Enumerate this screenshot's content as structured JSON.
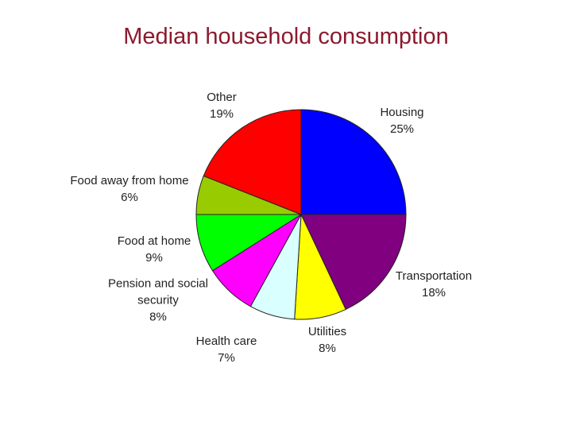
{
  "chart_data": {
    "type": "pie",
    "title": "Median household consumption",
    "categories": [
      "Housing",
      "Transportation",
      "Utilities",
      "Health care",
      "Pension and social security",
      "Food at home",
      "Food away from home",
      "Other"
    ],
    "values": [
      25,
      18,
      8,
      7,
      8,
      9,
      6,
      19
    ],
    "value_labels": [
      "25%",
      "18%",
      "8%",
      "7%",
      "8%",
      "9%",
      "6%",
      "19%"
    ],
    "colors": [
      "#0000ff",
      "#800080",
      "#ffff00",
      "#d9ffff",
      "#ff00ff",
      "#00ff00",
      "#99cc00",
      "#ff0000"
    ]
  }
}
